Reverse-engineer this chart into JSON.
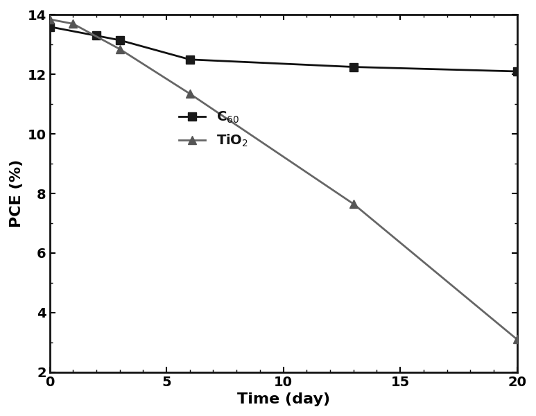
{
  "c60_x": [
    0,
    2,
    3,
    6,
    13,
    20
  ],
  "c60_y": [
    13.6,
    13.3,
    13.15,
    12.5,
    12.25,
    12.1
  ],
  "tio2_x": [
    0,
    1,
    3,
    6,
    13,
    20
  ],
  "tio2_y": [
    13.85,
    13.7,
    12.85,
    11.35,
    7.65,
    3.1
  ],
  "c60_color": "#1a1a1a",
  "tio2_color": "#555555",
  "line_color_c60": "#111111",
  "line_color_tio2": "#666666",
  "xlabel": "Time (day)",
  "ylabel": "PCE (%)",
  "xlim": [
    0,
    20
  ],
  "ylim": [
    2,
    14
  ],
  "yticks": [
    2,
    4,
    6,
    8,
    10,
    12,
    14
  ],
  "xticks": [
    0,
    5,
    10,
    15,
    20
  ],
  "legend_c60": "C$_{60}$",
  "legend_tio2": "TiO$_2$",
  "figsize": [
    7.73,
    6.0
  ],
  "dpi": 100,
  "marker_size_square": 8,
  "marker_size_triangle": 9,
  "linewidth": 2.0,
  "background_color": "#ffffff"
}
